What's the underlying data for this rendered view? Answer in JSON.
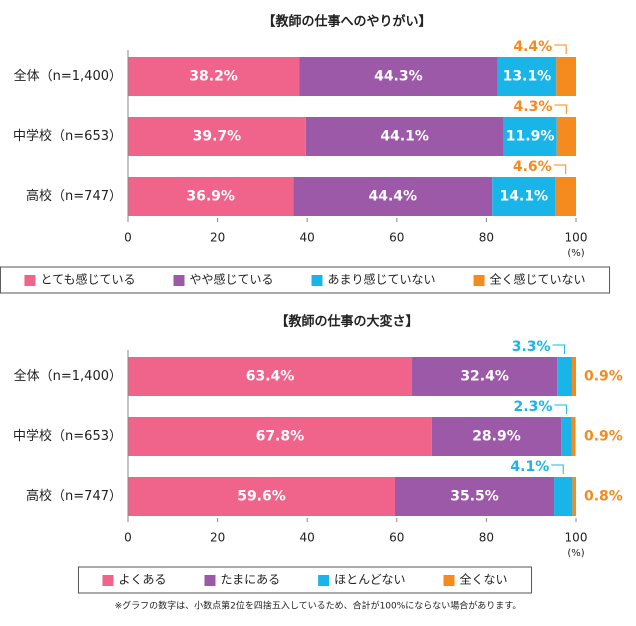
{
  "chart_data": [
    {
      "type": "stacked_bar",
      "orientation": "horizontal",
      "title": "【教師の仕事へのやりがい】",
      "categories": [
        "全体（n=1,400）",
        "中学校（n=653）",
        "高校（n=747）"
      ],
      "series": [
        {
          "name": "とても感じている",
          "color": "#f0648c",
          "values": [
            38.2,
            39.7,
            36.9
          ],
          "value_labels": [
            "38.2%",
            "39.7%",
            "36.9%"
          ]
        },
        {
          "name": "やや感じている",
          "color": "#9b59a8",
          "values": [
            44.3,
            44.1,
            44.4
          ],
          "value_labels": [
            "44.3%",
            "44.1%",
            "44.4%"
          ]
        },
        {
          "name": "あまり感じていない",
          "color": "#1ab5e8",
          "values": [
            13.1,
            11.9,
            14.1
          ],
          "value_labels": [
            "13.1%",
            "11.9%",
            "14.1%"
          ]
        },
        {
          "name": "全く感じていない",
          "color": "#f58a1f",
          "values": [
            4.4,
            4.3,
            4.6
          ],
          "value_labels": [
            "4.4%",
            "4.3%",
            "4.6%"
          ]
        }
      ],
      "xlim": [
        0,
        100
      ],
      "xticks": [
        0,
        20,
        40,
        60,
        80,
        100
      ],
      "x_label": "(%)",
      "legend": "bottom"
    },
    {
      "type": "stacked_bar",
      "orientation": "horizontal",
      "title": "【教師の仕事の大変さ】",
      "categories": [
        "全体（n=1,400）",
        "中学校（n=653）",
        "高校（n=747）"
      ],
      "series": [
        {
          "name": "よくある",
          "color": "#f0648c",
          "values": [
            63.4,
            67.8,
            59.6
          ],
          "value_labels": [
            "63.4%",
            "67.8%",
            "59.6%"
          ]
        },
        {
          "name": "たまにある",
          "color": "#9b59a8",
          "values": [
            32.4,
            28.9,
            35.5
          ],
          "value_labels": [
            "32.4%",
            "28.9%",
            "35.5%"
          ]
        },
        {
          "name": "ほとんどない",
          "color": "#1ab5e8",
          "values": [
            3.3,
            2.3,
            4.1
          ],
          "value_labels": [
            "3.3%",
            "2.3%",
            "4.1%"
          ]
        },
        {
          "name": "全くない",
          "color": "#f58a1f",
          "values": [
            0.9,
            0.9,
            0.8
          ],
          "value_labels": [
            "0.9%",
            "0.9%",
            "0.8%"
          ]
        }
      ],
      "xlim": [
        0,
        100
      ],
      "xticks": [
        0,
        20,
        40,
        60,
        80,
        100
      ],
      "x_label": "(%)",
      "legend": "bottom"
    }
  ],
  "footnote": "※グラフの数字は、小数点第2位を四捨五入しているため、合計が100%にならない場合があります。"
}
